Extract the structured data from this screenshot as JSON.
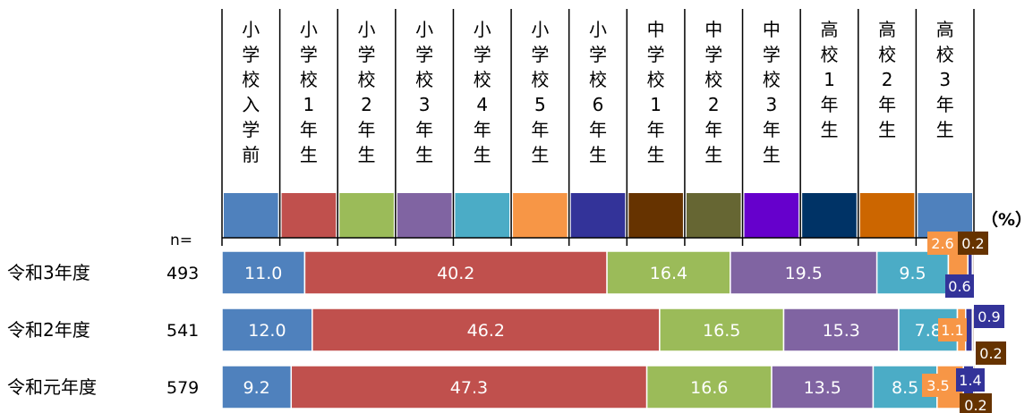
{
  "chart_data": {
    "type": "bar",
    "stacked": "100%",
    "orientation": "horizontal",
    "unit_label": "（%）",
    "n_label": "n=",
    "categories": [
      "令和3年度",
      "令和2年度",
      "令和元年度"
    ],
    "n": [
      "493",
      "541",
      "579"
    ],
    "series": [
      {
        "name": "小学校入学前",
        "color": "#4f81bd",
        "values": [
          11.0,
          12.0,
          9.2
        ]
      },
      {
        "name": "小学校1年生",
        "color": "#c0504d",
        "values": [
          40.2,
          46.2,
          47.3
        ]
      },
      {
        "name": "小学校2年生",
        "color": "#9bbb59",
        "values": [
          16.4,
          16.5,
          16.6
        ]
      },
      {
        "name": "小学校3年生",
        "color": "#8064a2",
        "values": [
          19.5,
          15.3,
          13.5
        ]
      },
      {
        "name": "小学校4年生",
        "color": "#4bacc6",
        "values": [
          9.5,
          7.8,
          8.5
        ]
      },
      {
        "name": "小学校5年生",
        "color": "#f79646",
        "values": [
          2.6,
          1.1,
          3.5
        ]
      },
      {
        "name": "小学校6年生",
        "color": "#333399",
        "values": [
          0.6,
          0.9,
          1.4
        ]
      },
      {
        "name": "中学校1年生",
        "color": "#663300",
        "values": [
          0.2,
          0.2,
          0.2
        ]
      },
      {
        "name": "中学校2年生",
        "color": "#666633",
        "values": [
          0,
          0,
          0
        ]
      },
      {
        "name": "中学校3年生",
        "color": "#6600cc",
        "values": [
          0,
          0,
          0
        ]
      },
      {
        "name": "高校1年生",
        "color": "#003366",
        "values": [
          0,
          0,
          0
        ]
      },
      {
        "name": "高校2年生",
        "color": "#cc6600",
        "values": [
          0,
          0,
          0
        ]
      },
      {
        "name": "高校3年生",
        "color": "#4f81bd",
        "values": [
          0,
          0,
          0
        ]
      }
    ],
    "data_labels": [
      [
        "11.0",
        "12.0",
        "9.2"
      ],
      [
        "40.2",
        "46.2",
        "47.3"
      ],
      [
        "16.4",
        "16.5",
        "16.6"
      ],
      [
        "19.5",
        "15.3",
        "13.5"
      ],
      [
        "9.5",
        "7.8",
        "8.5"
      ],
      [
        "2.6",
        "1.1",
        "3.5"
      ],
      [
        "0.6",
        "0.9",
        "1.4"
      ],
      [
        "0.2",
        "0.2",
        "0.2"
      ],
      [
        "",
        "",
        ""
      ],
      [
        "",
        "",
        ""
      ],
      [
        "",
        "",
        ""
      ],
      [
        "",
        "",
        ""
      ],
      [
        "",
        "",
        ""
      ]
    ],
    "xlim": [
      0,
      100
    ],
    "legend_position": "top",
    "grid": false
  }
}
